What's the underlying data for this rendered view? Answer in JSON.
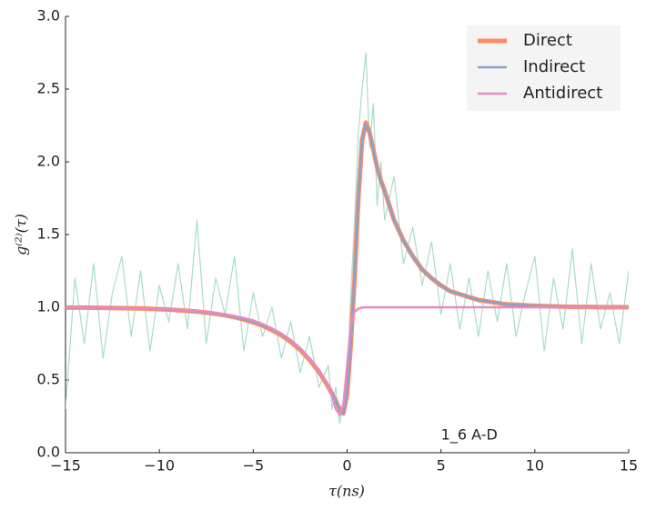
{
  "chart_data": {
    "type": "line",
    "xlabel": "τ(ns)",
    "ylabel": "g⁽²⁾(τ)",
    "annotation": "1_6 A-D",
    "xlim": [
      -15,
      15
    ],
    "ylim": [
      0,
      3
    ],
    "xticks": [
      {
        "value": -15,
        "label": "−15"
      },
      {
        "value": -10,
        "label": "−10"
      },
      {
        "value": -5,
        "label": "−5"
      },
      0,
      5,
      10,
      15
    ],
    "yticks": [
      {
        "value": 0,
        "label": "0.0"
      },
      0.5,
      {
        "value": 1,
        "label": "1.0"
      },
      1.5,
      {
        "value": 2,
        "label": "2.0"
      },
      2.5,
      {
        "value": 3,
        "label": "3.0"
      }
    ],
    "legend": "upper right",
    "x": [
      -15,
      -14.5,
      -14,
      -13.5,
      -13,
      -12.5,
      -12,
      -11.5,
      -11,
      -10.5,
      -10,
      -9.5,
      -9,
      -8.5,
      -8,
      -7.5,
      -7,
      -6.5,
      -6,
      -5.5,
      -5,
      -4.5,
      -4,
      -3.5,
      -3,
      -2.5,
      -2,
      -1.5,
      -1,
      -0.8,
      -0.6,
      -0.4,
      -0.2,
      0,
      0.2,
      0.4,
      0.6,
      0.8,
      1,
      1.2,
      1.4,
      1.6,
      1.8,
      2,
      2.5,
      3,
      3.5,
      4,
      4.5,
      5,
      5.5,
      6,
      6.5,
      7,
      7.5,
      8,
      8.5,
      9,
      9.5,
      10,
      10.5,
      11,
      11.5,
      12,
      12.5,
      13,
      13.5,
      14,
      14.5,
      15
    ],
    "series": [
      {
        "color": "#a9dcc9",
        "width": 1.2,
        "values": [
          0.3,
          1.2,
          0.75,
          1.3,
          0.65,
          1.1,
          1.35,
          0.8,
          1.25,
          0.7,
          1.15,
          0.9,
          1.3,
          0.85,
          1.6,
          0.75,
          1.2,
          0.95,
          1.35,
          0.7,
          1.1,
          0.8,
          1.0,
          0.65,
          0.9,
          0.55,
          0.8,
          0.45,
          0.6,
          0.3,
          0.45,
          0.2,
          0.35,
          0.5,
          1.1,
          1.6,
          2.2,
          2.5,
          2.75,
          2.1,
          2.4,
          1.7,
          2.0,
          1.6,
          1.9,
          1.3,
          1.55,
          1.15,
          1.45,
          0.95,
          1.3,
          0.85,
          1.2,
          0.8,
          1.25,
          0.9,
          1.3,
          0.8,
          1.1,
          1.35,
          0.7,
          1.2,
          0.85,
          1.4,
          0.75,
          1.3,
          0.85,
          1.1,
          0.75,
          1.25
        ]
      },
      {
        "name": "Direct",
        "color": "#fc8d62",
        "width": 5,
        "values": [
          0.998,
          0.998,
          0.998,
          0.997,
          0.996,
          0.995,
          0.994,
          0.993,
          0.992,
          0.99,
          0.987,
          0.984,
          0.98,
          0.976,
          0.97,
          0.963,
          0.955,
          0.945,
          0.932,
          0.916,
          0.896,
          0.873,
          0.843,
          0.807,
          0.762,
          0.707,
          0.639,
          0.556,
          0.453,
          0.405,
          0.353,
          0.3,
          0.27,
          0.4,
          0.75,
          1.2,
          1.75,
          2.15,
          2.27,
          2.2,
          2.08,
          1.96,
          1.87,
          1.8,
          1.6,
          1.46,
          1.35,
          1.26,
          1.2,
          1.15,
          1.11,
          1.09,
          1.07,
          1.05,
          1.04,
          1.03,
          1.02,
          1.017,
          1.013,
          1.01,
          1.008,
          1.006,
          1.004,
          1.003,
          1.002,
          1.002,
          1.001,
          1.001,
          1.001,
          1.0
        ]
      },
      {
        "name": "Indirect",
        "color": "#8da0cb",
        "width": 2.5,
        "values": [
          0.998,
          0.998,
          0.998,
          0.997,
          0.996,
          0.995,
          0.994,
          0.993,
          0.992,
          0.99,
          0.987,
          0.984,
          0.98,
          0.976,
          0.97,
          0.963,
          0.955,
          0.945,
          0.933,
          0.918,
          0.899,
          0.877,
          0.849,
          0.815,
          0.772,
          0.717,
          0.649,
          0.566,
          0.46,
          0.41,
          0.355,
          0.3,
          0.27,
          0.41,
          0.76,
          1.22,
          1.76,
          2.16,
          2.26,
          2.2,
          2.08,
          1.96,
          1.87,
          1.8,
          1.6,
          1.46,
          1.35,
          1.26,
          1.2,
          1.15,
          1.11,
          1.09,
          1.07,
          1.05,
          1.04,
          1.03,
          1.02,
          1.017,
          1.013,
          1.01,
          1.008,
          1.006,
          1.004,
          1.003,
          1.002,
          1.002,
          1.001,
          1.001,
          1.001,
          1.0
        ]
      },
      {
        "name": "Antidirect",
        "color": "#e78ac3",
        "width": 2.5,
        "values": [
          0.998,
          0.998,
          0.998,
          0.997,
          0.996,
          0.995,
          0.994,
          0.993,
          0.992,
          0.99,
          0.988,
          0.986,
          0.983,
          0.979,
          0.974,
          0.968,
          0.96,
          0.951,
          0.94,
          0.926,
          0.91,
          0.885,
          0.855,
          0.82,
          0.775,
          0.72,
          0.65,
          0.57,
          0.46,
          0.39,
          0.3,
          0.26,
          0.33,
          0.6,
          0.88,
          0.97,
          0.99,
          0.998,
          1.0,
          1.0,
          1.0,
          1.0,
          1.0,
          1.0,
          1.0,
          1.0,
          1.0,
          1.0,
          1.0,
          1.0,
          1.0,
          1.0,
          1.0,
          1.0,
          1.0,
          1.0,
          1.0,
          1.0,
          1.0,
          1.0,
          1.0,
          1.0,
          1.0,
          1.0,
          1.0,
          1.0,
          1.0,
          1.0,
          1.0,
          1.0
        ]
      }
    ]
  }
}
